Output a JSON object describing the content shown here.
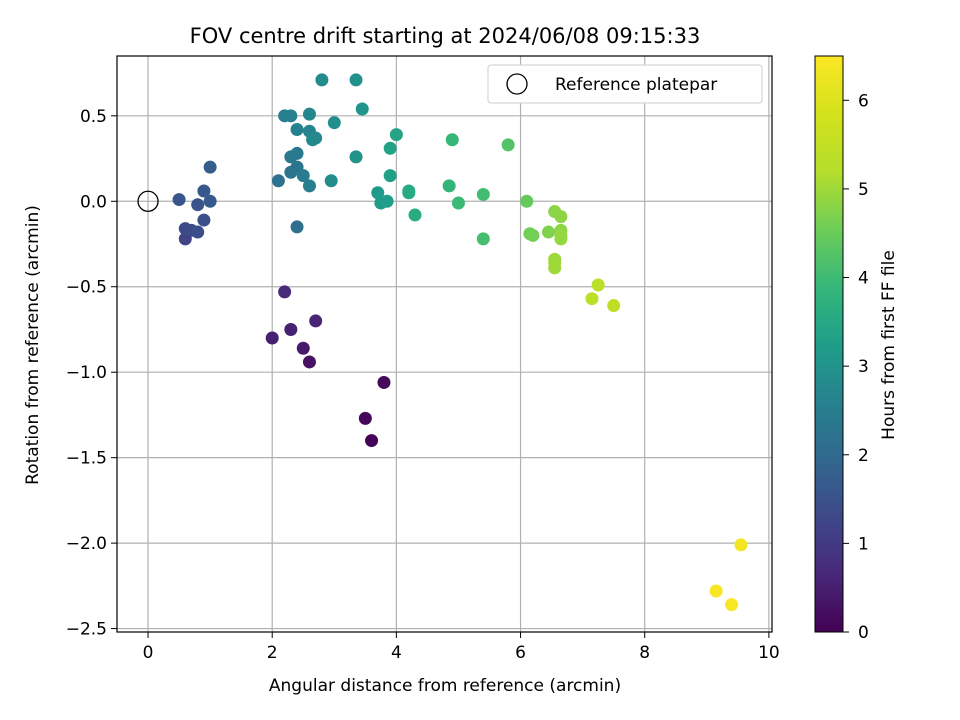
{
  "chart_data": {
    "type": "scatter",
    "title": "FOV centre drift starting at 2024/06/08 09:15:33",
    "xlabel": "Angular distance from reference (arcmin)",
    "ylabel": "Rotation from reference (arcmin)",
    "xlim": [
      -0.5,
      10.05
    ],
    "ylim": [
      -2.52,
      0.85
    ],
    "xticks": [
      0,
      2,
      4,
      6,
      8,
      10
    ],
    "xtick_labels": [
      "0",
      "2",
      "4",
      "6",
      "8",
      "10"
    ],
    "yticks": [
      0.5,
      0.0,
      -0.5,
      -1.0,
      -1.5,
      -2.0,
      -2.5
    ],
    "ytick_labels": [
      "0.5",
      "0.0",
      "−0.5",
      "−1.0",
      "−1.5",
      "−2.0",
      "−2.5"
    ],
    "grid": true,
    "legend": {
      "placement": "top-right",
      "entries": [
        "Reference platepar"
      ]
    },
    "reference_point": {
      "x": 0,
      "y": 0
    },
    "colorbar": {
      "label": "Hours from first FF file",
      "range": [
        0,
        6.5
      ],
      "ticks": [
        0,
        1,
        2,
        3,
        4,
        5,
        6
      ],
      "tick_labels": [
        "0",
        "1",
        "2",
        "3",
        "4",
        "5",
        "6"
      ],
      "colormap": "viridis"
    },
    "points": [
      {
        "x": 3.6,
        "y": -1.4,
        "c": 0.05
      },
      {
        "x": 3.5,
        "y": -1.27,
        "c": 0.1
      },
      {
        "x": 3.8,
        "y": -1.06,
        "c": 0.15
      },
      {
        "x": 2.6,
        "y": -0.94,
        "c": 0.3
      },
      {
        "x": 2.5,
        "y": -0.86,
        "c": 0.4
      },
      {
        "x": 2.0,
        "y": -0.8,
        "c": 0.5
      },
      {
        "x": 2.3,
        "y": -0.75,
        "c": 0.55
      },
      {
        "x": 2.7,
        "y": -0.7,
        "c": 0.6
      },
      {
        "x": 2.2,
        "y": -0.53,
        "c": 0.7
      },
      {
        "x": 0.6,
        "y": -0.22,
        "c": 1.2
      },
      {
        "x": 0.6,
        "y": -0.16,
        "c": 1.3
      },
      {
        "x": 0.7,
        "y": -0.17,
        "c": 1.35
      },
      {
        "x": 0.8,
        "y": -0.18,
        "c": 1.4
      },
      {
        "x": 0.9,
        "y": -0.11,
        "c": 1.45
      },
      {
        "x": 0.8,
        "y": -0.02,
        "c": 1.5
      },
      {
        "x": 0.5,
        "y": 0.01,
        "c": 1.55
      },
      {
        "x": 0.9,
        "y": 0.06,
        "c": 1.6
      },
      {
        "x": 1.0,
        "y": 0.0,
        "c": 1.65
      },
      {
        "x": 1.0,
        "y": 0.2,
        "c": 1.75
      },
      {
        "x": 2.4,
        "y": -0.15,
        "c": 2.1
      },
      {
        "x": 2.1,
        "y": 0.12,
        "c": 2.2
      },
      {
        "x": 2.3,
        "y": 0.17,
        "c": 2.25
      },
      {
        "x": 2.4,
        "y": 0.2,
        "c": 2.3
      },
      {
        "x": 2.3,
        "y": 0.26,
        "c": 2.35
      },
      {
        "x": 2.4,
        "y": 0.28,
        "c": 2.4
      },
      {
        "x": 2.5,
        "y": 0.15,
        "c": 2.45
      },
      {
        "x": 2.6,
        "y": 0.09,
        "c": 2.5
      },
      {
        "x": 2.2,
        "y": 0.5,
        "c": 2.5
      },
      {
        "x": 2.3,
        "y": 0.5,
        "c": 2.55
      },
      {
        "x": 2.4,
        "y": 0.42,
        "c": 2.6
      },
      {
        "x": 2.6,
        "y": 0.41,
        "c": 2.65
      },
      {
        "x": 2.6,
        "y": 0.51,
        "c": 2.7
      },
      {
        "x": 2.7,
        "y": 0.37,
        "c": 2.75
      },
      {
        "x": 2.65,
        "y": 0.36,
        "c": 2.75
      },
      {
        "x": 2.8,
        "y": 0.71,
        "c": 2.8
      },
      {
        "x": 2.95,
        "y": 0.12,
        "c": 2.85
      },
      {
        "x": 3.0,
        "y": 0.46,
        "c": 2.9
      },
      {
        "x": 3.35,
        "y": 0.71,
        "c": 2.95
      },
      {
        "x": 3.35,
        "y": 0.26,
        "c": 3.0
      },
      {
        "x": 3.45,
        "y": 0.54,
        "c": 3.05
      },
      {
        "x": 3.7,
        "y": 0.05,
        "c": 3.15
      },
      {
        "x": 3.75,
        "y": -0.01,
        "c": 3.2
      },
      {
        "x": 3.85,
        "y": 0.0,
        "c": 3.25
      },
      {
        "x": 3.9,
        "y": 0.15,
        "c": 3.3
      },
      {
        "x": 3.9,
        "y": 0.31,
        "c": 3.35
      },
      {
        "x": 4.0,
        "y": 0.39,
        "c": 3.4
      },
      {
        "x": 4.2,
        "y": 0.05,
        "c": 3.5
      },
      {
        "x": 4.2,
        "y": 0.06,
        "c": 3.55
      },
      {
        "x": 4.3,
        "y": -0.08,
        "c": 3.6
      },
      {
        "x": 4.85,
        "y": 0.09,
        "c": 3.85
      },
      {
        "x": 4.9,
        "y": 0.36,
        "c": 3.9
      },
      {
        "x": 5.0,
        "y": -0.01,
        "c": 3.95
      },
      {
        "x": 5.4,
        "y": 0.04,
        "c": 4.05
      },
      {
        "x": 5.4,
        "y": -0.22,
        "c": 4.1
      },
      {
        "x": 5.8,
        "y": 0.33,
        "c": 4.25
      },
      {
        "x": 6.1,
        "y": 0.0,
        "c": 4.45
      },
      {
        "x": 6.15,
        "y": -0.19,
        "c": 4.55
      },
      {
        "x": 6.2,
        "y": -0.2,
        "c": 4.6
      },
      {
        "x": 6.45,
        "y": -0.18,
        "c": 4.7
      },
      {
        "x": 6.55,
        "y": -0.06,
        "c": 4.8
      },
      {
        "x": 6.65,
        "y": -0.09,
        "c": 4.85
      },
      {
        "x": 6.65,
        "y": -0.17,
        "c": 4.85
      },
      {
        "x": 6.65,
        "y": -0.2,
        "c": 4.9
      },
      {
        "x": 6.65,
        "y": -0.22,
        "c": 4.9
      },
      {
        "x": 6.55,
        "y": -0.34,
        "c": 4.95
      },
      {
        "x": 6.55,
        "y": -0.36,
        "c": 5.0
      },
      {
        "x": 6.55,
        "y": -0.39,
        "c": 5.0
      },
      {
        "x": 7.25,
        "y": -0.49,
        "c": 5.3
      },
      {
        "x": 7.15,
        "y": -0.57,
        "c": 5.35
      },
      {
        "x": 7.5,
        "y": -0.61,
        "c": 5.4
      },
      {
        "x": 9.55,
        "y": -2.01,
        "c": 6.35
      },
      {
        "x": 9.15,
        "y": -2.28,
        "c": 6.4
      },
      {
        "x": 9.4,
        "y": -2.36,
        "c": 6.45
      }
    ]
  }
}
